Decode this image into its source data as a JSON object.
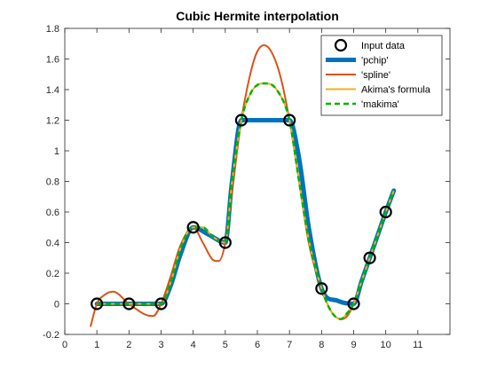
{
  "chart_data": {
    "type": "line",
    "title": "Cubic Hermite interpolation",
    "xlabel": "",
    "ylabel": "",
    "xlim": [
      0,
      12
    ],
    "ylim": [
      -0.2,
      1.8
    ],
    "xticks": [
      0,
      1,
      2,
      3,
      4,
      5,
      6,
      7,
      8,
      9,
      10,
      11
    ],
    "yticks": [
      -0.2,
      0,
      0.2,
      0.4,
      0.6,
      0.8,
      1,
      1.2,
      1.4,
      1.6,
      1.8
    ],
    "grid": false,
    "legend_position": "top-right",
    "series": [
      {
        "name": "Input data",
        "style": "markers",
        "color": "#000000",
        "x": [
          1,
          2,
          3,
          4,
          5,
          5.5,
          7,
          8,
          9,
          9.5,
          10
        ],
        "y": [
          0,
          0,
          0,
          0.5,
          0.4,
          1.2,
          1.2,
          0.1,
          0,
          0.3,
          0.6
        ]
      },
      {
        "name": "'pchip'",
        "style": "thick-line",
        "color": "#0072BD",
        "x": [
          1,
          2,
          3,
          3.3,
          3.6,
          4,
          4.5,
          5,
          5.2,
          5.5,
          6,
          6.5,
          7,
          7.3,
          7.6,
          8,
          8.5,
          9,
          9.25,
          9.5,
          9.75,
          10,
          10.25
        ],
        "y": [
          0,
          0,
          0,
          0.12,
          0.32,
          0.5,
          0.45,
          0.4,
          0.78,
          1.2,
          1.2,
          1.2,
          1.2,
          0.95,
          0.5,
          0.1,
          0.02,
          0,
          0.15,
          0.3,
          0.45,
          0.6,
          0.74
        ]
      },
      {
        "name": "'spline'",
        "style": "line",
        "color": "#D95319",
        "x": [
          0.8,
          1,
          1.25,
          1.5,
          2,
          2.5,
          2.75,
          3,
          3.3,
          3.6,
          4,
          4.3,
          4.6,
          4.8,
          5,
          5.2,
          5.5,
          5.8,
          6,
          6.2,
          6.4,
          6.7,
          7,
          7.3,
          7.6,
          8,
          8.3,
          8.6,
          8.8,
          9,
          9.25,
          9.5,
          9.75,
          10,
          10.25
        ],
        "y": [
          -0.15,
          0,
          0.06,
          0.08,
          0,
          -0.07,
          -0.08,
          0,
          0.18,
          0.38,
          0.5,
          0.4,
          0.29,
          0.28,
          0.4,
          0.72,
          1.2,
          1.52,
          1.65,
          1.69,
          1.66,
          1.5,
          1.2,
          0.8,
          0.4,
          0.1,
          -0.05,
          -0.1,
          -0.08,
          0,
          0.15,
          0.3,
          0.45,
          0.6,
          0.74
        ]
      },
      {
        "name": "Akima's formula",
        "style": "line",
        "color": "#EDB120",
        "x": [
          1,
          2,
          3,
          3.3,
          3.6,
          4,
          4.3,
          4.6,
          5,
          5.2,
          5.5,
          5.8,
          6,
          6.3,
          6.6,
          7,
          7.3,
          7.6,
          8,
          8.3,
          8.6,
          8.8,
          9,
          9.25,
          9.5,
          9.75,
          10,
          10.25
        ],
        "y": [
          0,
          0,
          0,
          0.14,
          0.36,
          0.5,
          0.5,
          0.44,
          0.4,
          0.78,
          1.2,
          1.38,
          1.43,
          1.44,
          1.4,
          1.2,
          0.8,
          0.42,
          0.1,
          -0.05,
          -0.1,
          -0.06,
          0,
          0.15,
          0.3,
          0.45,
          0.6,
          0.74
        ]
      },
      {
        "name": "'makima'",
        "style": "dashed-line",
        "color": "#00B300",
        "x": [
          1,
          2,
          3,
          3.3,
          3.6,
          4,
          4.3,
          4.6,
          5,
          5.2,
          5.5,
          5.8,
          6,
          6.3,
          6.6,
          7,
          7.3,
          7.6,
          8,
          8.3,
          8.6,
          8.8,
          9,
          9.25,
          9.5,
          9.75,
          10,
          10.25
        ],
        "y": [
          0,
          0,
          0,
          0.14,
          0.36,
          0.5,
          0.5,
          0.44,
          0.4,
          0.78,
          1.2,
          1.38,
          1.43,
          1.44,
          1.4,
          1.2,
          0.8,
          0.42,
          0.1,
          -0.05,
          -0.1,
          -0.06,
          0,
          0.15,
          0.3,
          0.45,
          0.6,
          0.74
        ]
      }
    ]
  }
}
